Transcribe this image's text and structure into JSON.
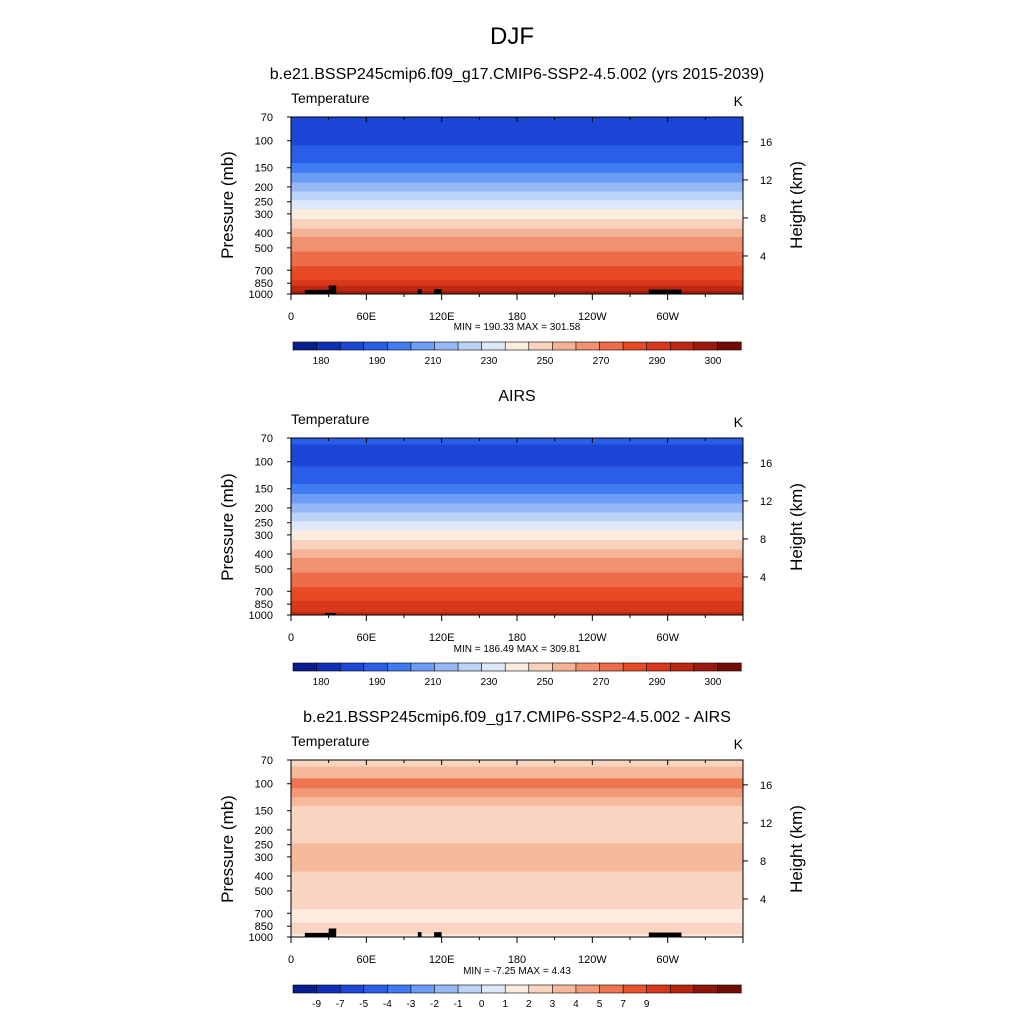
{
  "figure": {
    "title": "DJF"
  },
  "colors": {
    "temp_levels": [
      "#0a1f8f",
      "#102fb8",
      "#1c46d6",
      "#2b5ee8",
      "#3f7cf2",
      "#6c9cf5",
      "#96b8f6",
      "#bcd3f8",
      "#dde9fb",
      "#fbece0",
      "#f8d2bc",
      "#f4b394",
      "#f19170",
      "#ee6c4a",
      "#e84a25",
      "#d9381b",
      "#be2812",
      "#9b1a0b",
      "#6f0a04"
    ],
    "diff_levels": [
      "#0a1f8f",
      "#102fb8",
      "#1c46d6",
      "#2b5ee8",
      "#3f7cf2",
      "#6c9cf5",
      "#96b8f6",
      "#bcd3f8",
      "#dde9fb",
      "#fdebe0",
      "#f9d4c0",
      "#f5b99b",
      "#f29a77",
      "#ee7752",
      "#e9532d",
      "#d6381b",
      "#b8250f",
      "#8d1608",
      "#6f0a04"
    ],
    "land": "#000000"
  },
  "chart_data": [
    {
      "type": "heatmap",
      "title": "b.e21.BSSP245cmip6.f09_g17.CMIP6-SSP2-4.5.002 (yrs 2015-2039)",
      "left_label": "Temperature",
      "right_label": "K",
      "ylabel": "Pressure (mb)",
      "ylabel_right": "Height (km)",
      "x_ticks": [
        "0",
        "60E",
        "120E",
        "180",
        "120W",
        "60W"
      ],
      "x_tick_lons": [
        0,
        60,
        120,
        180,
        240,
        300
      ],
      "xlim": [
        0,
        360
      ],
      "y_ticks": [
        "70",
        "100",
        "150",
        "200",
        "250",
        "300",
        "400",
        "500",
        "700",
        "850",
        "1000"
      ],
      "y_tick_values": [
        70,
        100,
        150,
        200,
        250,
        300,
        400,
        500,
        700,
        850,
        1000
      ],
      "ylim": [
        70,
        1000
      ],
      "y_scale": "log",
      "height_ticks": [
        "16",
        "12",
        "8",
        "4"
      ],
      "height_tick_values": [
        16,
        12,
        8,
        4
      ],
      "stats": "MIN = 190.33  MAX = 301.58",
      "colorbar_labels": [
        "180",
        "190",
        "210",
        "230",
        "250",
        "270",
        "290",
        "300"
      ],
      "profile_levels": [
        70,
        85,
        100,
        115,
        130,
        150,
        175,
        200,
        230,
        260,
        300,
        350,
        400,
        450,
        500,
        560,
        620,
        700,
        770,
        850,
        920,
        1000
      ],
      "profile_bins": [
        2,
        2,
        2,
        3,
        3,
        4,
        5,
        6,
        7,
        8,
        9,
        10,
        11,
        12,
        12,
        13,
        13,
        14,
        14,
        15,
        16,
        17
      ],
      "land_blocks": [
        [
          11,
          35,
          940
        ],
        [
          30,
          36,
          880
        ],
        [
          101,
          104,
          930
        ],
        [
          114,
          120,
          930
        ],
        [
          285,
          311,
          935
        ]
      ]
    },
    {
      "type": "heatmap",
      "title": "AIRS",
      "left_label": "Temperature",
      "right_label": "K",
      "ylabel": "Pressure (mb)",
      "ylabel_right": "Height (km)",
      "x_ticks": [
        "0",
        "60E",
        "120E",
        "180",
        "120W",
        "60W"
      ],
      "x_tick_lons": [
        0,
        60,
        120,
        180,
        240,
        300
      ],
      "xlim": [
        0,
        360
      ],
      "y_ticks": [
        "70",
        "100",
        "150",
        "200",
        "250",
        "300",
        "400",
        "500",
        "700",
        "850",
        "1000"
      ],
      "y_tick_values": [
        70,
        100,
        150,
        200,
        250,
        300,
        400,
        500,
        700,
        850,
        1000
      ],
      "ylim": [
        70,
        1000
      ],
      "y_scale": "log",
      "height_ticks": [
        "16",
        "12",
        "8",
        "4"
      ],
      "height_tick_values": [
        16,
        12,
        8,
        4
      ],
      "stats": "MIN = 186.49  MAX = 309.81",
      "colorbar_labels": [
        "180",
        "190",
        "210",
        "230",
        "250",
        "270",
        "290",
        "300"
      ],
      "profile_levels": [
        70,
        85,
        100,
        115,
        130,
        150,
        175,
        200,
        230,
        260,
        300,
        350,
        400,
        450,
        500,
        560,
        620,
        700,
        770,
        850,
        920,
        1000
      ],
      "profile_bins": [
        3,
        2,
        2,
        3,
        3,
        4,
        5,
        6,
        7,
        8,
        9,
        10,
        11,
        12,
        12,
        13,
        13,
        14,
        14,
        15,
        15,
        16
      ],
      "land_blocks": [
        [
          27,
          36,
          970
        ]
      ]
    },
    {
      "type": "heatmap",
      "title": "b.e21.BSSP245cmip6.f09_g17.CMIP6-SSP2-4.5.002 - AIRS",
      "left_label": "Temperature",
      "right_label": "K",
      "ylabel": "Pressure (mb)",
      "ylabel_right": "Height (km)",
      "x_ticks": [
        "0",
        "60E",
        "120E",
        "180",
        "120W",
        "60W"
      ],
      "x_tick_lons": [
        0,
        60,
        120,
        180,
        240,
        300
      ],
      "xlim": [
        0,
        360
      ],
      "y_ticks": [
        "70",
        "100",
        "150",
        "200",
        "250",
        "300",
        "400",
        "500",
        "700",
        "850",
        "1000"
      ],
      "y_tick_values": [
        70,
        100,
        150,
        200,
        250,
        300,
        400,
        500,
        700,
        850,
        1000
      ],
      "ylim": [
        70,
        1000
      ],
      "y_scale": "log",
      "height_ticks": [
        "16",
        "12",
        "8",
        "4"
      ],
      "height_tick_values": [
        16,
        12,
        8,
        4
      ],
      "stats": "MIN =  -7.25  MAX =   4.43",
      "colorbar_labels": [
        "-9",
        "-7",
        "-5",
        "-4",
        "-3",
        "-2",
        "-1",
        "0",
        "1",
        "2",
        "3",
        "4",
        "5",
        "7",
        "9"
      ],
      "profile_levels": [
        70,
        85,
        100,
        115,
        130,
        150,
        175,
        200,
        230,
        260,
        300,
        350,
        400,
        450,
        500,
        560,
        620,
        700,
        770,
        850,
        920,
        1000
      ],
      "profile_bins": [
        10,
        11,
        13,
        12,
        11,
        10,
        10,
        10,
        10,
        11,
        11,
        11,
        10,
        10,
        10,
        10,
        10,
        9,
        9,
        10,
        10,
        9
      ],
      "land_blocks": [
        [
          11,
          35,
          940
        ],
        [
          30,
          36,
          880
        ],
        [
          101,
          104,
          930
        ],
        [
          114,
          120,
          930
        ],
        [
          285,
          311,
          935
        ]
      ]
    }
  ]
}
